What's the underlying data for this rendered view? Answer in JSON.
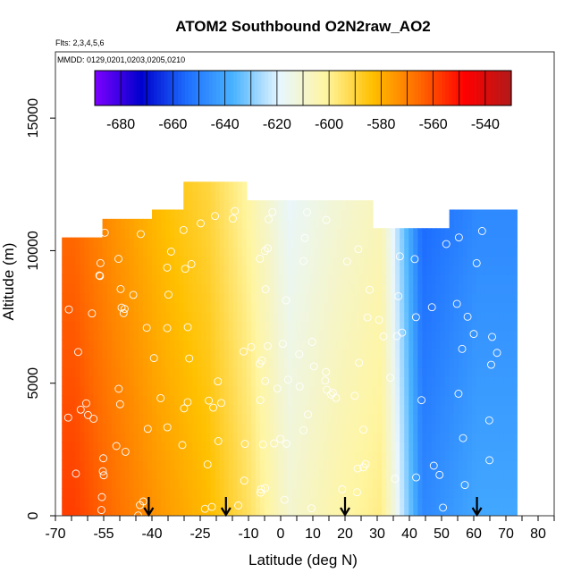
{
  "chart_data": {
    "type": "heatmap",
    "title": "ATOM2 Southbound O2N2raw_AO2",
    "subtitle_flights": "Flts: 2,3,4,5,6",
    "subtitle_dates": "MMDD: 0129,0201,0203,0205,0210",
    "xlabel": "Latitude (deg N)",
    "ylabel": "Altitude (m)",
    "xlim": [
      -70,
      85
    ],
    "ylim": [
      0,
      17500
    ],
    "x_ticks": [
      -70,
      -65,
      -60,
      -55,
      -50,
      -45,
      -40,
      -35,
      -30,
      -25,
      -20,
      -15,
      -10,
      -5,
      0,
      5,
      10,
      15,
      20,
      25,
      30,
      35,
      40,
      45,
      50,
      55,
      60,
      65,
      70,
      75,
      80,
      85
    ],
    "x_tick_labels": [
      "-70",
      "-55",
      "-40",
      "-25",
      "-10",
      "0",
      "10",
      "20",
      "30",
      "40",
      "50",
      "60",
      "70",
      "80"
    ],
    "x_tick_label_values": [
      -70,
      -55,
      -40,
      -25,
      -10,
      0,
      10,
      20,
      30,
      40,
      50,
      60,
      70,
      80
    ],
    "y_ticks": [
      0,
      5000,
      10000,
      15000
    ],
    "y_tick_labels": [
      "0",
      "5000",
      "10000",
      "15000"
    ],
    "colorbar": {
      "min": -690,
      "max": -530,
      "tick_labels": [
        "-680",
        "-660",
        "-640",
        "-620",
        "-600",
        "-580",
        "-560",
        "-540"
      ],
      "tick_values": [
        -680,
        -660,
        -640,
        -620,
        -600,
        -580,
        -560,
        -540
      ],
      "colors": [
        "#7f00ff",
        "#0000cd",
        "#1e6fff",
        "#4ab4ff",
        "#e8f6ff",
        "#fff5a0",
        "#ffc000",
        "#ff6a00",
        "#ff0000",
        "#b21a1a"
      ]
    },
    "field_bands": [
      {
        "lat_range": [
          -68,
          -60
        ],
        "value": -558
      },
      {
        "lat_range": [
          -60,
          -45
        ],
        "value": -566
      },
      {
        "lat_range": [
          -45,
          -30
        ],
        "value": -575
      },
      {
        "lat_range": [
          -30,
          -15
        ],
        "value": -582
      },
      {
        "lat_range": [
          -15,
          -5
        ],
        "value": -594
      },
      {
        "lat_range": [
          -5,
          10
        ],
        "value": -610
      },
      {
        "lat_range": [
          10,
          25
        ],
        "value": -603
      },
      {
        "lat_range": [
          25,
          38
        ],
        "value": -598
      },
      {
        "lat_range": [
          38,
          50
        ],
        "value": -648
      },
      {
        "lat_range": [
          50,
          72
        ],
        "value": -640
      }
    ],
    "arrow_latitudes": [
      -41,
      -17,
      20,
      61
    ],
    "grid": false,
    "legend_placement": "top (colorbar)"
  }
}
